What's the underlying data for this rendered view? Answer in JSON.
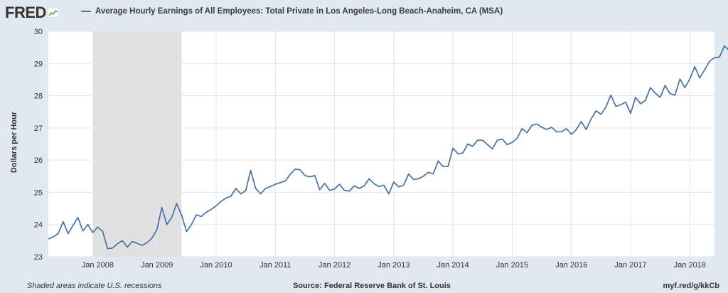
{
  "logo": {
    "text": "FRED"
  },
  "footer": {
    "note": "Shaded areas indicate U.S. recessions",
    "source": "Source: Federal Reserve Bank of St. Louis",
    "url": "myf.red/g/kkCb"
  },
  "colors": {
    "series": "#4572a7",
    "recession": "#e1e1e1",
    "grid": "#e4e4e4"
  },
  "chart_data": {
    "type": "line",
    "title": "",
    "xlabel": "",
    "ylabel": "Dollars per Hour",
    "ylim": [
      23,
      30
    ],
    "xlim": [
      "2007-03-01",
      "2018-06-01"
    ],
    "yticks": [
      "23",
      "24",
      "25",
      "26",
      "27",
      "28",
      "29",
      "30"
    ],
    "xticks": [
      "Jan 2008",
      "Jan 2009",
      "Jan 2010",
      "Jan 2011",
      "Jan 2012",
      "Jan 2013",
      "Jan 2014",
      "Jan 2015",
      "Jan 2016",
      "Jan 2017",
      "Jan 2018"
    ],
    "grid": true,
    "legend": "top-left",
    "recessions": [
      {
        "start": "2007-12-01",
        "end": "2009-06-01"
      }
    ],
    "series": [
      {
        "name": "Average Hourly Earnings of All Employees: Total Private in Los Angeles-Long Beach-Anaheim, CA (MSA)",
        "start": "2007-03",
        "frequency": "monthly",
        "values": [
          23.55,
          23.62,
          23.72,
          24.09,
          23.72,
          23.97,
          24.22,
          23.8,
          24.0,
          23.75,
          23.92,
          23.79,
          23.25,
          23.27,
          23.4,
          23.5,
          23.3,
          23.47,
          23.42,
          23.35,
          23.44,
          23.58,
          23.84,
          24.53,
          24.0,
          24.22,
          24.65,
          24.3,
          23.78,
          24.0,
          24.3,
          24.25,
          24.38,
          24.47,
          24.58,
          24.72,
          24.82,
          24.88,
          25.12,
          24.95,
          25.05,
          25.68,
          25.13,
          24.95,
          25.12,
          25.18,
          25.25,
          25.3,
          25.35,
          25.55,
          25.72,
          25.7,
          25.52,
          25.48,
          25.52,
          25.08,
          25.28,
          25.06,
          25.1,
          25.25,
          25.06,
          25.04,
          25.2,
          25.12,
          25.2,
          25.42,
          25.27,
          25.18,
          25.22,
          24.95,
          25.32,
          25.17,
          25.22,
          25.57,
          25.4,
          25.42,
          25.5,
          25.62,
          25.57,
          25.97,
          25.8,
          25.8,
          26.37,
          26.2,
          26.22,
          26.5,
          26.43,
          26.62,
          26.62,
          26.48,
          26.35,
          26.62,
          26.65,
          26.48,
          26.55,
          26.68,
          26.98,
          26.85,
          27.08,
          27.12,
          27.02,
          26.95,
          27.02,
          26.88,
          26.88,
          26.98,
          26.8,
          26.95,
          27.2,
          26.95,
          27.28,
          27.53,
          27.42,
          27.65,
          28.02,
          27.67,
          27.72,
          27.8,
          27.45,
          27.95,
          27.75,
          27.85,
          28.25,
          28.08,
          27.95,
          28.32,
          28.06,
          28.02,
          28.52,
          28.25,
          28.52,
          28.9,
          28.55,
          28.8,
          29.07,
          29.18,
          29.2,
          29.55,
          29.4
        ]
      }
    ]
  }
}
